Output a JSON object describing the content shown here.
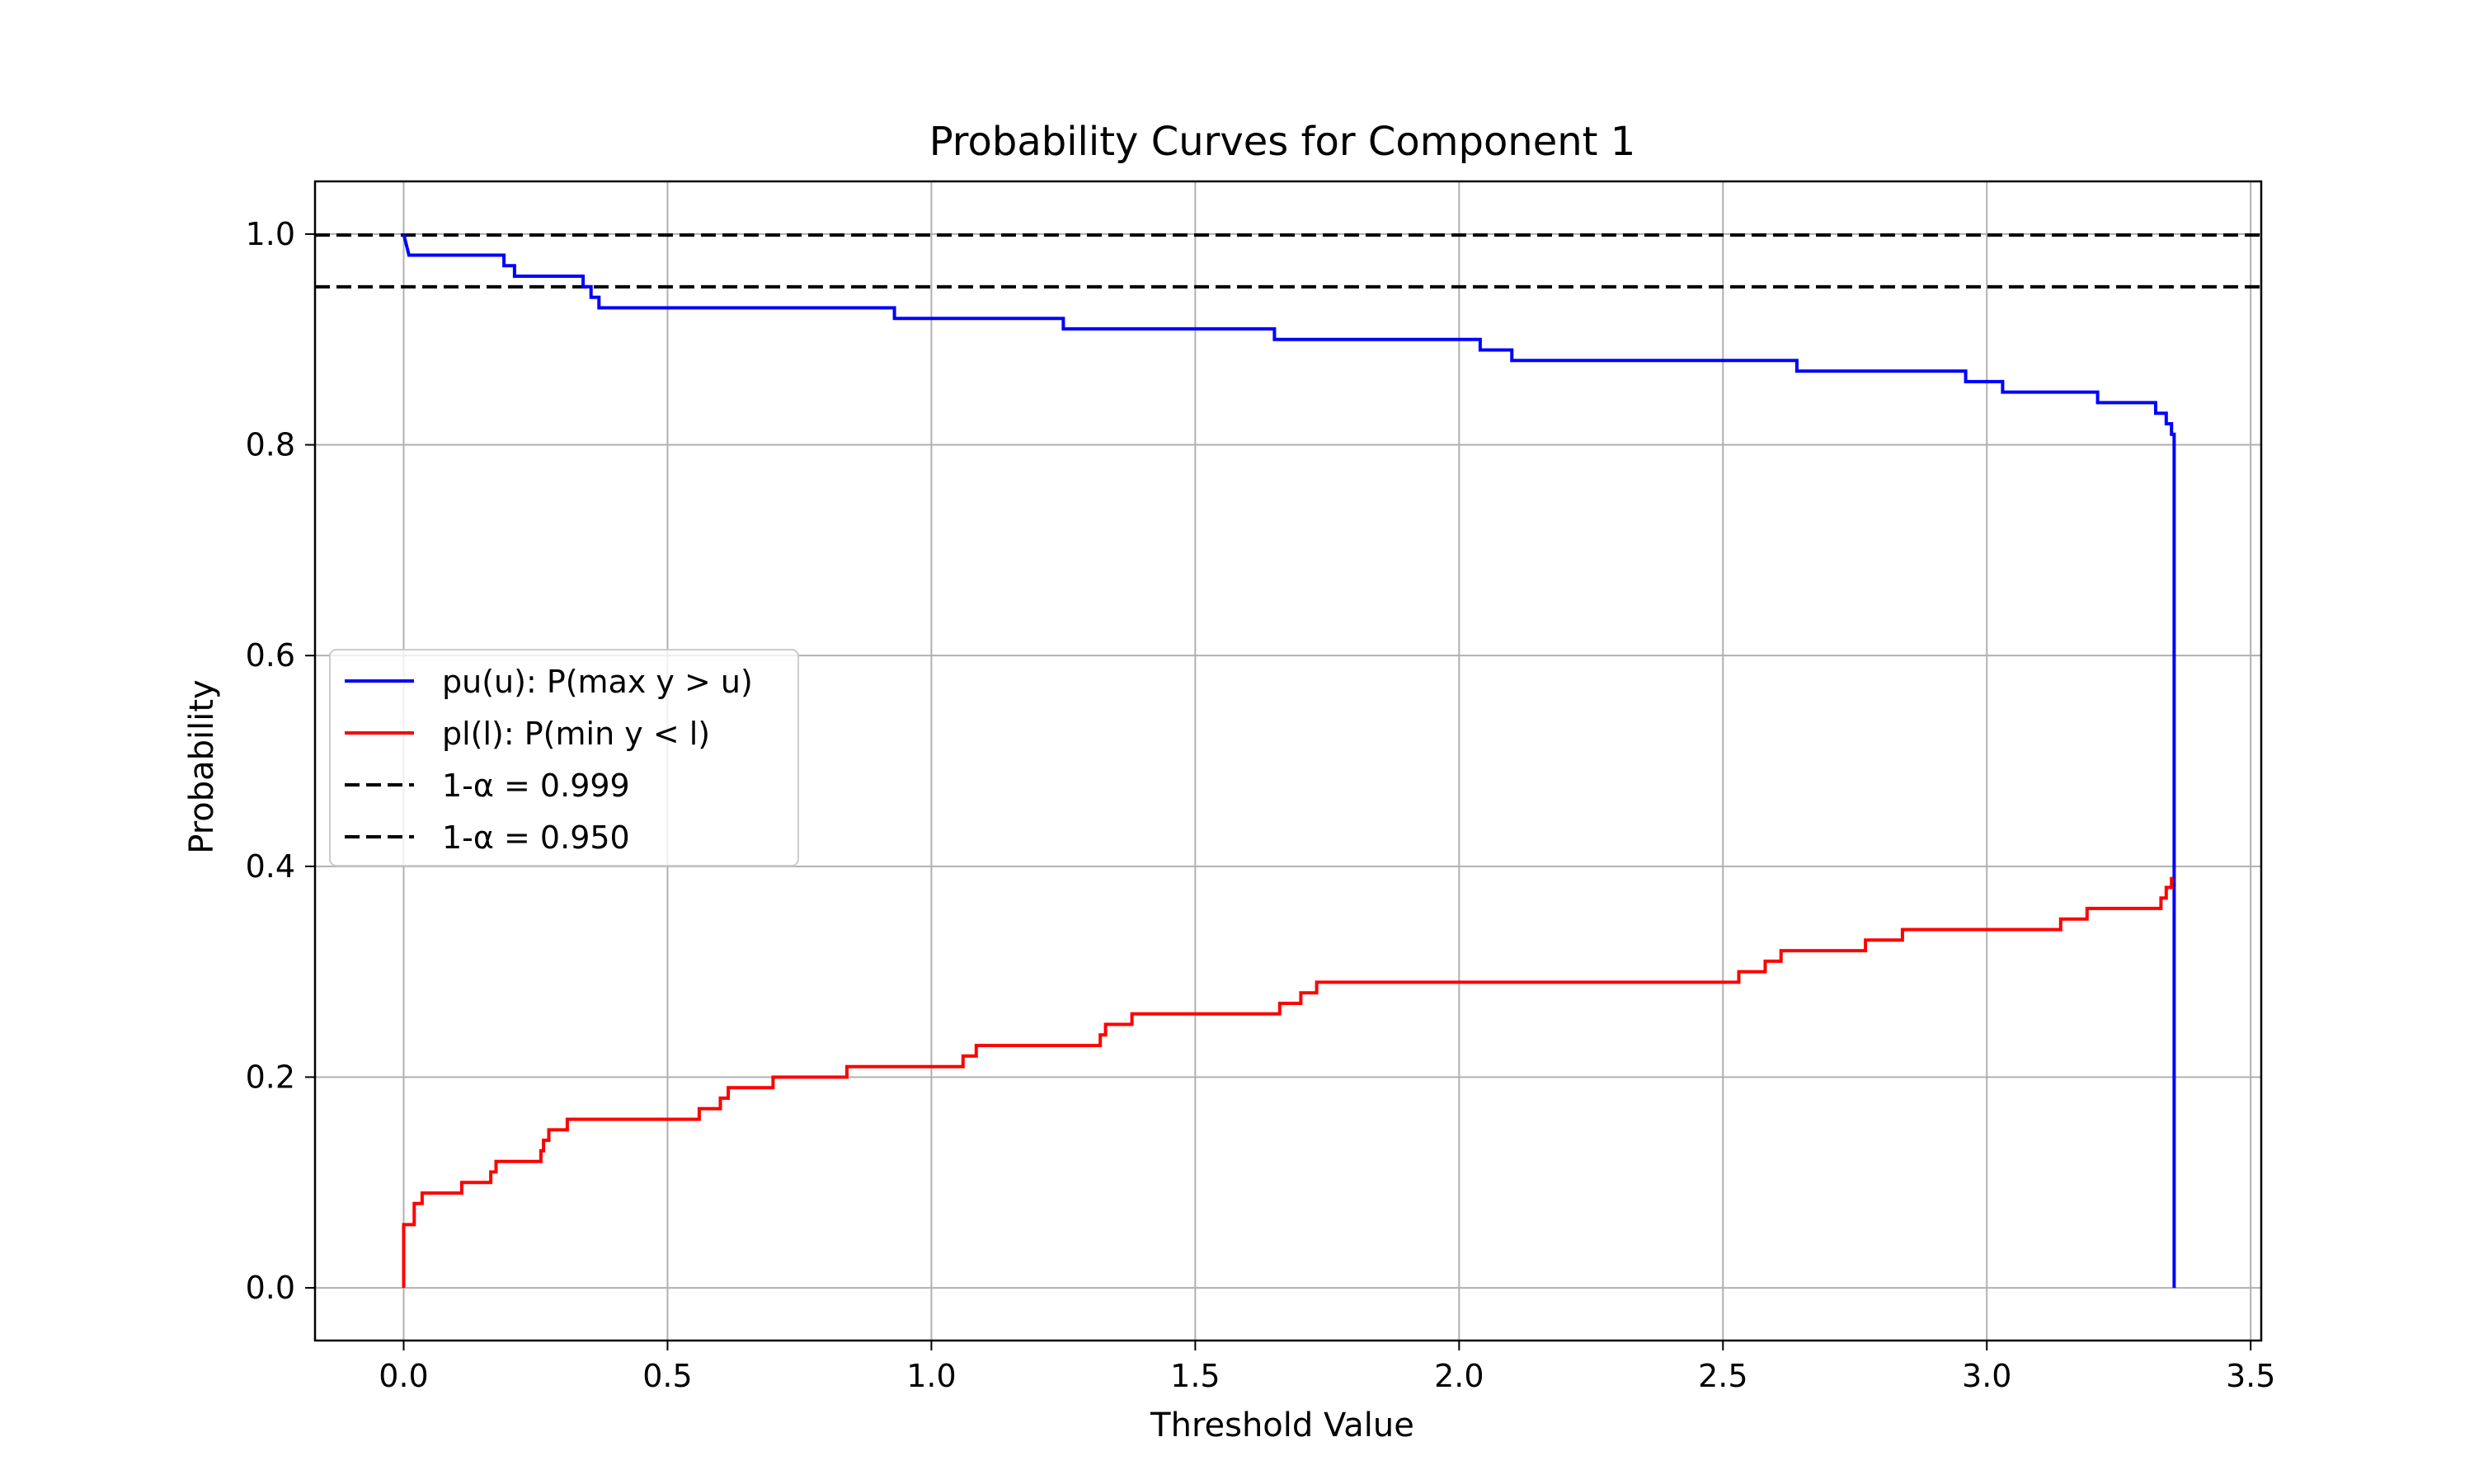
{
  "chart_data": {
    "type": "line",
    "title": "Probability Curves for Component 1",
    "xlabel": "Threshold Value",
    "ylabel": "Probability",
    "xlim": [
      -0.168,
      3.52
    ],
    "ylim": [
      -0.05,
      1.05
    ],
    "grid": true,
    "legend_position": "center-left",
    "x_ticks": [
      0.0,
      0.5,
      1.0,
      1.5,
      2.0,
      2.5,
      3.0,
      3.5
    ],
    "x_tick_labels": [
      "0.0",
      "0.5",
      "1.0",
      "1.5",
      "2.0",
      "2.5",
      "3.0",
      "3.5"
    ],
    "y_ticks": [
      0.0,
      0.2,
      0.4,
      0.6,
      0.8,
      1.0
    ],
    "y_tick_labels": [
      "0.0",
      "0.2",
      "0.4",
      "0.6",
      "0.8",
      "1.0"
    ],
    "series": [
      {
        "name": "pu(u): P(max y > u)",
        "color": "#0000ff",
        "style": "step",
        "points": [
          [
            0.0,
            1.0
          ],
          [
            0.005,
            0.99
          ],
          [
            0.01,
            0.98
          ],
          [
            0.19,
            0.98
          ],
          [
            0.19,
            0.97
          ],
          [
            0.21,
            0.97
          ],
          [
            0.21,
            0.96
          ],
          [
            0.34,
            0.96
          ],
          [
            0.34,
            0.95
          ],
          [
            0.355,
            0.95
          ],
          [
            0.355,
            0.94
          ],
          [
            0.37,
            0.94
          ],
          [
            0.37,
            0.93
          ],
          [
            0.93,
            0.93
          ],
          [
            0.93,
            0.92
          ],
          [
            1.25,
            0.92
          ],
          [
            1.25,
            0.91
          ],
          [
            1.65,
            0.91
          ],
          [
            1.65,
            0.9
          ],
          [
            2.04,
            0.9
          ],
          [
            2.04,
            0.89
          ],
          [
            2.1,
            0.89
          ],
          [
            2.1,
            0.88
          ],
          [
            2.64,
            0.88
          ],
          [
            2.64,
            0.87
          ],
          [
            2.96,
            0.87
          ],
          [
            2.96,
            0.86
          ],
          [
            3.03,
            0.86
          ],
          [
            3.03,
            0.85
          ],
          [
            3.21,
            0.85
          ],
          [
            3.21,
            0.84
          ],
          [
            3.32,
            0.84
          ],
          [
            3.32,
            0.83
          ],
          [
            3.34,
            0.83
          ],
          [
            3.34,
            0.82
          ],
          [
            3.35,
            0.82
          ],
          [
            3.35,
            0.81
          ],
          [
            3.355,
            0.81
          ],
          [
            3.355,
            0.0
          ]
        ]
      },
      {
        "name": "pl(l): P(min y < l)",
        "color": "#ff0000",
        "style": "step",
        "points": [
          [
            0.0,
            0.0
          ],
          [
            0.0,
            0.06
          ],
          [
            0.02,
            0.06
          ],
          [
            0.02,
            0.08
          ],
          [
            0.035,
            0.08
          ],
          [
            0.035,
            0.09
          ],
          [
            0.11,
            0.09
          ],
          [
            0.11,
            0.1
          ],
          [
            0.165,
            0.1
          ],
          [
            0.165,
            0.11
          ],
          [
            0.175,
            0.11
          ],
          [
            0.175,
            0.12
          ],
          [
            0.26,
            0.12
          ],
          [
            0.26,
            0.13
          ],
          [
            0.265,
            0.13
          ],
          [
            0.265,
            0.14
          ],
          [
            0.275,
            0.14
          ],
          [
            0.275,
            0.15
          ],
          [
            0.31,
            0.15
          ],
          [
            0.31,
            0.16
          ],
          [
            0.56,
            0.16
          ],
          [
            0.56,
            0.17
          ],
          [
            0.6,
            0.17
          ],
          [
            0.6,
            0.18
          ],
          [
            0.615,
            0.18
          ],
          [
            0.615,
            0.19
          ],
          [
            0.7,
            0.19
          ],
          [
            0.7,
            0.2
          ],
          [
            0.84,
            0.2
          ],
          [
            0.84,
            0.21
          ],
          [
            1.06,
            0.21
          ],
          [
            1.06,
            0.22
          ],
          [
            1.085,
            0.22
          ],
          [
            1.085,
            0.23
          ],
          [
            1.32,
            0.23
          ],
          [
            1.32,
            0.24
          ],
          [
            1.33,
            0.24
          ],
          [
            1.33,
            0.25
          ],
          [
            1.38,
            0.25
          ],
          [
            1.38,
            0.26
          ],
          [
            1.66,
            0.26
          ],
          [
            1.66,
            0.27
          ],
          [
            1.7,
            0.27
          ],
          [
            1.7,
            0.28
          ],
          [
            1.73,
            0.28
          ],
          [
            1.73,
            0.29
          ],
          [
            2.53,
            0.29
          ],
          [
            2.53,
            0.3
          ],
          [
            2.58,
            0.3
          ],
          [
            2.58,
            0.31
          ],
          [
            2.61,
            0.31
          ],
          [
            2.61,
            0.32
          ],
          [
            2.77,
            0.32
          ],
          [
            2.77,
            0.33
          ],
          [
            2.84,
            0.33
          ],
          [
            2.84,
            0.34
          ],
          [
            3.14,
            0.34
          ],
          [
            3.14,
            0.35
          ],
          [
            3.19,
            0.35
          ],
          [
            3.19,
            0.36
          ],
          [
            3.33,
            0.36
          ],
          [
            3.33,
            0.37
          ],
          [
            3.34,
            0.37
          ],
          [
            3.34,
            0.38
          ],
          [
            3.35,
            0.38
          ],
          [
            3.35,
            0.39
          ]
        ]
      }
    ],
    "reference_lines": [
      {
        "name": "1-α = 0.999",
        "y": 0.999,
        "color": "#000000",
        "style": "dashed"
      },
      {
        "name": "1-α = 0.950",
        "y": 0.95,
        "color": "#000000",
        "style": "dashed"
      }
    ],
    "legend": [
      {
        "label": "pu(u): P(max y > u)",
        "color": "#0000ff",
        "style": "solid"
      },
      {
        "label": "pl(l): P(min y < l)",
        "color": "#ff0000",
        "style": "solid"
      },
      {
        "label": "1-α = 0.999",
        "color": "#000000",
        "style": "dashed"
      },
      {
        "label": "1-α = 0.950",
        "color": "#000000",
        "style": "dashed"
      }
    ]
  }
}
